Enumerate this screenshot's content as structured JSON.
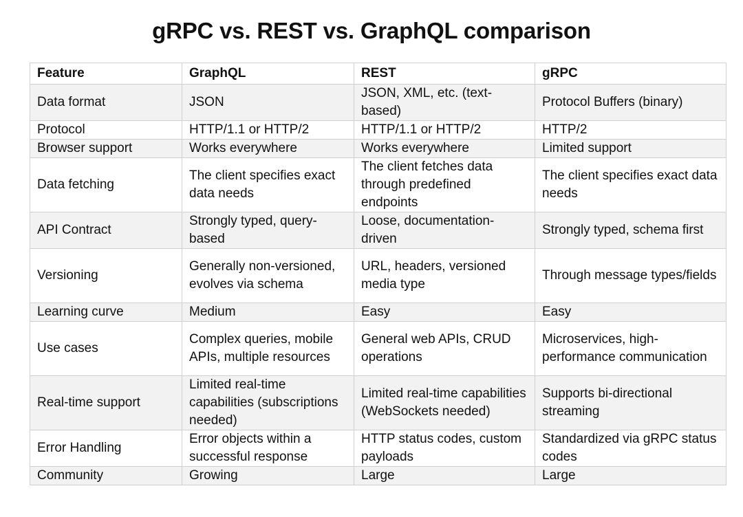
{
  "title": "gRPC vs. REST vs. GraphQL comparison",
  "table": {
    "headers": [
      "Feature",
      "GraphQL",
      "REST",
      "gRPC"
    ],
    "rows": [
      {
        "lines": 2,
        "cells": [
          "Data format",
          "JSON",
          "JSON, XML, etc. (text-based)",
          "Protocol Buffers (binary)"
        ]
      },
      {
        "lines": 1,
        "cells": [
          "Protocol",
          "HTTP/1.1 or HTTP/2",
          "HTTP/1.1 or HTTP/2",
          "HTTP/2"
        ]
      },
      {
        "lines": 1,
        "cells": [
          "Browser support",
          "Works everywhere",
          "Works everywhere",
          "Limited support"
        ]
      },
      {
        "lines": 3,
        "cells": [
          "Data fetching",
          "The client specifies exact data needs",
          "The client fetches data through predefined endpoints",
          "The client specifies exact data needs"
        ]
      },
      {
        "lines": 2,
        "cells": [
          "API Contract",
          "Strongly typed, query-based",
          "Loose, documentation-driven",
          "Strongly typed, schema first"
        ]
      },
      {
        "lines": 3,
        "cells": [
          "Versioning",
          "Generally non-versioned, evolves via schema",
          "URL, headers, versioned media type",
          "Through message types/fields"
        ]
      },
      {
        "lines": 1,
        "cells": [
          "Learning curve",
          "Medium",
          "Easy",
          "Easy"
        ]
      },
      {
        "lines": 3,
        "cells": [
          "Use cases",
          "Complex queries, mobile APIs, multiple resources",
          "General web APIs, CRUD operations",
          "Microservices, high-performance communication"
        ]
      },
      {
        "lines": 3,
        "cells": [
          "Real-time support",
          "Limited real-time capabilities (subscriptions needed)",
          "Limited real-time capabilities (WebSockets needed)",
          "Supports bi-directional streaming"
        ]
      },
      {
        "lines": 2,
        "cells": [
          "Error Handling",
          "Error objects within a successful response",
          "HTTP status codes, custom payloads",
          "Standardized via gRPC status codes"
        ]
      },
      {
        "lines": 1,
        "cells": [
          "Community",
          "Growing",
          "Large",
          "Large"
        ]
      }
    ]
  }
}
